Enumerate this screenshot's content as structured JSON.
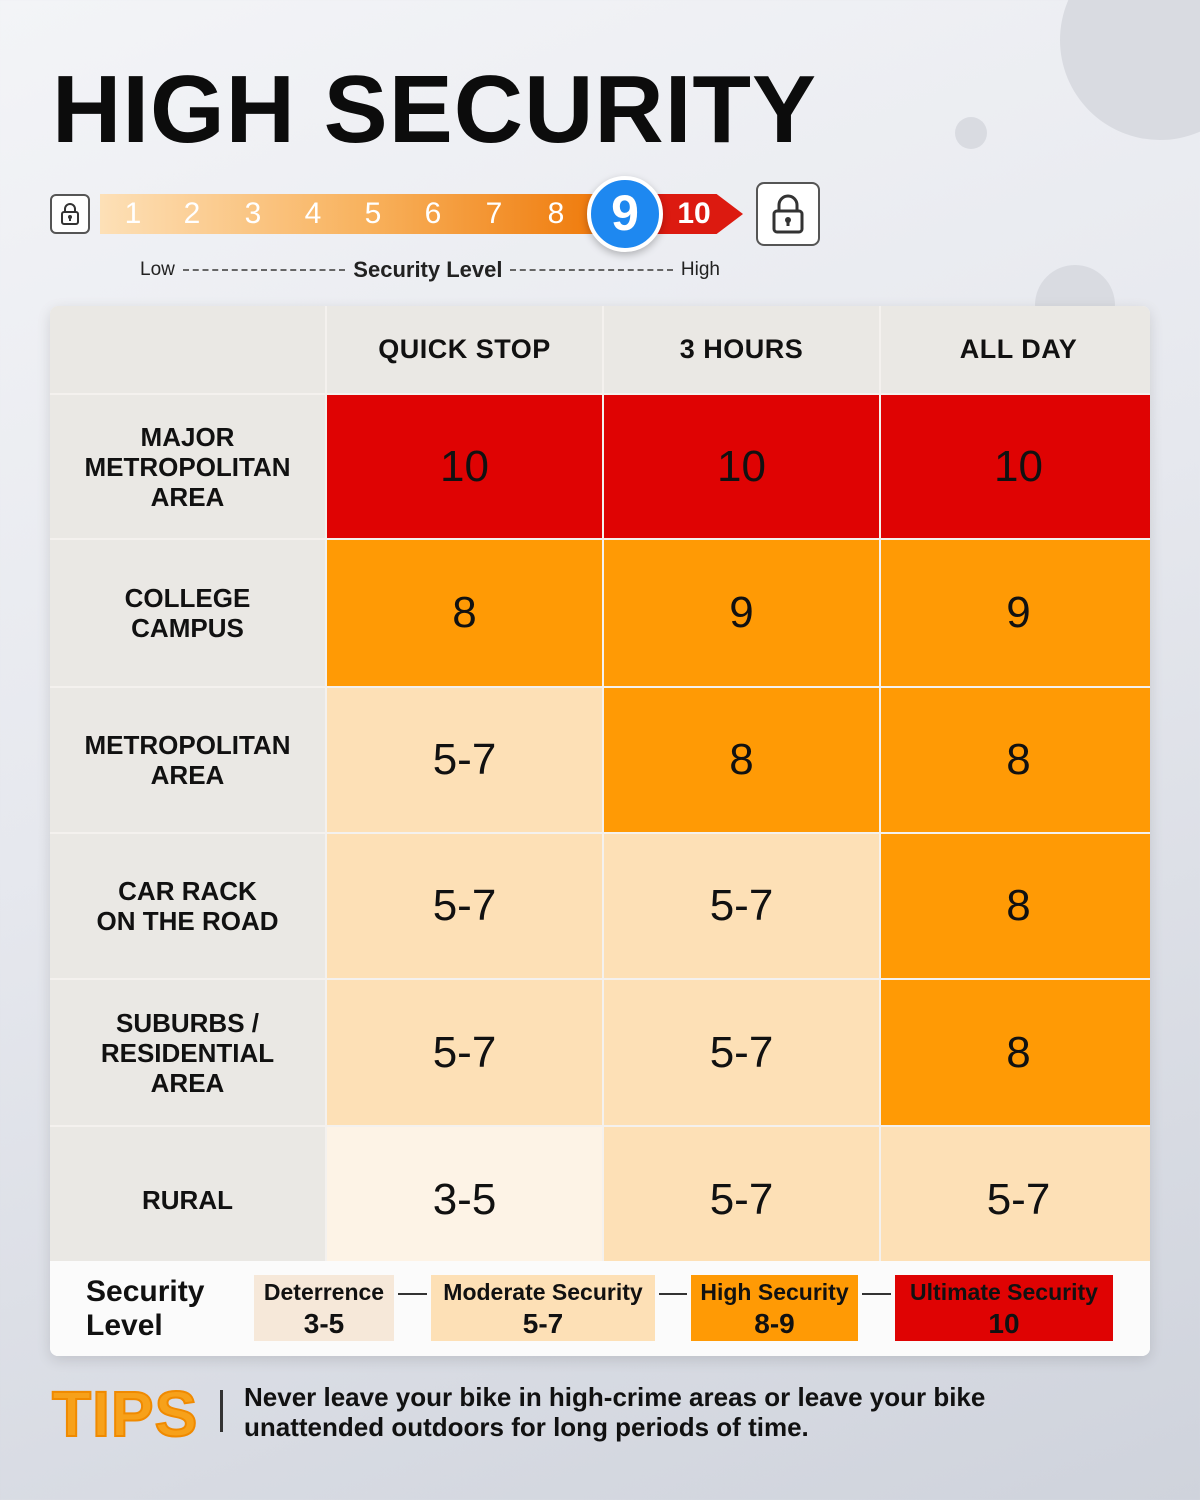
{
  "title": "HIGH SECURITY",
  "scale": {
    "numbers": [
      "1",
      "2",
      "3",
      "4",
      "5",
      "6",
      "7",
      "8"
    ],
    "current": "9",
    "max": "10",
    "low_label": "Low",
    "mid_label": "Security Level",
    "high_label": "High"
  },
  "table": {
    "columns": [
      "",
      "QUICK STOP",
      "3 HOURS",
      "ALL DAY"
    ],
    "rows": [
      {
        "label": "MAJOR\nMETROPOLITAN\nAREA",
        "values": [
          "10",
          "10",
          "10"
        ],
        "levels": [
          "ultimate",
          "ultimate",
          "ultimate"
        ]
      },
      {
        "label": "COLLEGE\nCAMPUS",
        "values": [
          "8",
          "9",
          "9"
        ],
        "levels": [
          "high",
          "high",
          "high"
        ]
      },
      {
        "label": "METROPOLITAN\nAREA",
        "values": [
          "5-7",
          "8",
          "8"
        ],
        "levels": [
          "moderate",
          "high",
          "high"
        ]
      },
      {
        "label": "CAR RACK\nON THE ROAD",
        "values": [
          "5-7",
          "5-7",
          "8"
        ],
        "levels": [
          "moderate",
          "moderate",
          "high"
        ]
      },
      {
        "label": "SUBURBS /\nRESIDENTIAL\nAREA",
        "values": [
          "5-7",
          "5-7",
          "8"
        ],
        "levels": [
          "moderate",
          "moderate",
          "high"
        ]
      },
      {
        "label": "RURAL",
        "values": [
          "3-5",
          "5-7",
          "5-7"
        ],
        "levels": [
          "deterrence",
          "moderate",
          "moderate"
        ]
      }
    ]
  },
  "legend": {
    "title": "Security Level",
    "items": [
      {
        "name": "Deterrence",
        "range": "3-5",
        "color": "#f6e8d9"
      },
      {
        "name": "Moderate Security",
        "range": "5-7",
        "color": "#fde0b6"
      },
      {
        "name": "High Security",
        "range": "8-9",
        "color": "#ff9a05"
      },
      {
        "name": "Ultimate Security",
        "range": "10",
        "color": "#df0303"
      }
    ]
  },
  "level_colors": {
    "deterrence": "#fdf3e6",
    "moderate": "#fde0b6",
    "high": "#ff9a05",
    "ultimate": "#df0303"
  },
  "tips": {
    "word": "TIPS",
    "text": "Never leave your bike in high-crime areas or leave your bike unattended outdoors for long periods of time."
  }
}
